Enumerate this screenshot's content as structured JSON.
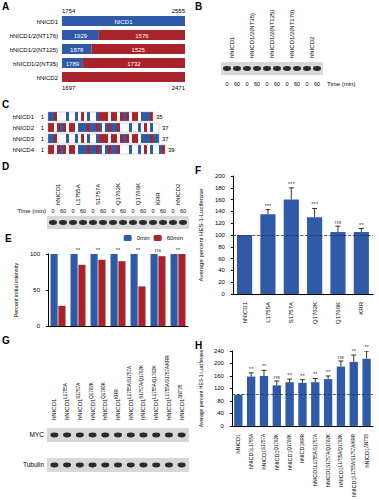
{
  "panels": {
    "A": {
      "label": "A",
      "range_start": "1754",
      "range_end": "2555",
      "constructs": [
        {
          "name": "hNICD1",
          "segments": [
            {
              "text": "NICD1",
              "color": "#2e5aa8"
            }
          ]
        },
        {
          "name": "hNICD1/2(NT176)",
          "segments": [
            {
              "text": "1929",
              "color": "#2e5aa8"
            },
            {
              "text": "1576",
              "color": "#a8232a"
            }
          ]
        },
        {
          "name": "hNICD1/2(NT125)",
          "segments": [
            {
              "text": "1878",
              "color": "#2e5aa8"
            },
            {
              "text": "1525",
              "color": "#a8232a"
            }
          ]
        },
        {
          "name": "hNICD1/2(NT35)",
          "segments": [
            {
              "text": "1789",
              "color": "#2e5aa8"
            },
            {
              "text": "1732",
              "color": "#a8232a"
            }
          ]
        },
        {
          "name": "hNICD2",
          "segments": [
            {
              "color": "#a8232a"
            }
          ]
        }
      ],
      "hNICD2_start": "1697",
      "hNICD2_end": "2471"
    },
    "B": {
      "label": "B",
      "lanes": [
        "hNICD1",
        "hNICD1/2(NT35)",
        "hNICD1/2(NT125)",
        "hNICD1/2(NT176)",
        "hNICD2"
      ],
      "times": [
        "0",
        "60"
      ],
      "time_label": "Time (min)"
    },
    "C": {
      "label": "C",
      "rows": [
        {
          "name": "hNICD1",
          "start": "1",
          "end": "35"
        },
        {
          "name": "hNICD2",
          "start": "1",
          "end": "37"
        },
        {
          "name": "hNICD3",
          "start": "1",
          "end": "37"
        },
        {
          "name": "hNICD4",
          "start": "1",
          "end": "39"
        }
      ]
    },
    "D": {
      "label": "D",
      "lanes": [
        "hNICD1",
        "L1755A",
        "S1757A",
        "Q1762K",
        "Q1766K",
        "KRR",
        "hNICD2"
      ],
      "times": [
        "0",
        "60"
      ],
      "time_label": "Time (min)"
    },
    "G": {
      "label": "G",
      "lanes": [
        {
          "base": "hNICD1",
          "sup": null
        },
        {
          "base": "hNICD1",
          "sup": "L1755A"
        },
        {
          "base": "hNICD1",
          "sup": "S1757A"
        },
        {
          "base": "hNICD1",
          "sup": "Q1762K"
        },
        {
          "base": "hNICD1",
          "sup": "Q1766K"
        },
        {
          "base": "hNICD1",
          "sup": "KRR"
        },
        {
          "base": "hNICD1",
          "sup": "L1755A/S1757A"
        },
        {
          "base": "hNICD1",
          "sup": "S1757A/Q1762K"
        },
        {
          "base": "hNICD1",
          "sup": "L1755A/Q1762K"
        },
        {
          "base": "hNICD1",
          "sup": "L1755A/S1757A/KRR"
        },
        {
          "base": "hNICD1",
          "sup": "ΔNT35"
        }
      ],
      "rows": [
        "MYC",
        "Tubulin"
      ]
    }
  },
  "chart_data": [
    {
      "panel_label": "E",
      "type": "bar",
      "categories": [
        null,
        null,
        null,
        null,
        null,
        null,
        null
      ],
      "series": [
        {
          "name": "0min",
          "color": "#2e5aa8",
          "values": [
            100,
            100,
            100,
            100,
            100,
            100,
            100
          ]
        },
        {
          "name": "60min",
          "color": "#a8232a",
          "values": [
            28,
            85,
            92,
            90,
            55,
            97,
            100
          ]
        }
      ],
      "ylim": [
        0,
        100
      ],
      "yticks": [
        0,
        50,
        100
      ],
      "y_label": "Percent initial intensity",
      "annotations": [
        null,
        "**",
        "**",
        "**",
        "**",
        "ns",
        "**"
      ],
      "legend": "top-right",
      "tick_labels": "y",
      "grid": false
    },
    {
      "panel_label": "F",
      "type": "bar",
      "categories": [
        "hNICD1",
        "L1755A",
        "S1757A",
        "Q1762K",
        "Q1766K",
        "KRR"
      ],
      "values": [
        100,
        135,
        160,
        130,
        105,
        105
      ],
      "errors": [
        0,
        8,
        20,
        15,
        10,
        6
      ],
      "color": "#2e5aa8",
      "ylim": [
        0,
        200
      ],
      "yticks": [
        0,
        20,
        40,
        60,
        80,
        100,
        120,
        140,
        160,
        180,
        200
      ],
      "y_label": "Average percent HES-1-Luciferase",
      "annotations": [
        null,
        "***",
        "***",
        "***",
        "ns",
        "**"
      ],
      "reference": 100,
      "grid": false
    },
    {
      "panel_label": "H",
      "type": "bar",
      "categories": [
        "hNICD1",
        "hNICD1",
        "hNICD1",
        "hNICD1",
        "hNICD1",
        "hNICD1",
        "hNICD1",
        "hNICD1",
        "hNICD1",
        "hNICD1",
        "hNICD1"
      ],
      "category_superscripts": [
        null,
        "L1755A",
        "S1757A",
        "Q1762K",
        "Q1766K",
        "KRR",
        "L1755A/S1757A",
        "S1757A/Q1762K",
        "L1755A/Q1762K",
        "L1755A/S1757A/KRR",
        "ΔNT35"
      ],
      "values": [
        100,
        158,
        160,
        130,
        140,
        138,
        140,
        150,
        190,
        205,
        215
      ],
      "errors": [
        0,
        12,
        18,
        14,
        10,
        10,
        12,
        10,
        18,
        22,
        25
      ],
      "color": "#2e5aa8",
      "ylim": [
        0,
        240
      ],
      "yticks": [
        0,
        40,
        80,
        120,
        160,
        200,
        240
      ],
      "y_label": "Average percent HES-1-Luciferase",
      "annotations": [
        null,
        "**",
        "**",
        "ns",
        "**",
        "**",
        "**",
        "**",
        "ns",
        "**",
        "**"
      ],
      "reference": 100,
      "grid": false
    }
  ]
}
